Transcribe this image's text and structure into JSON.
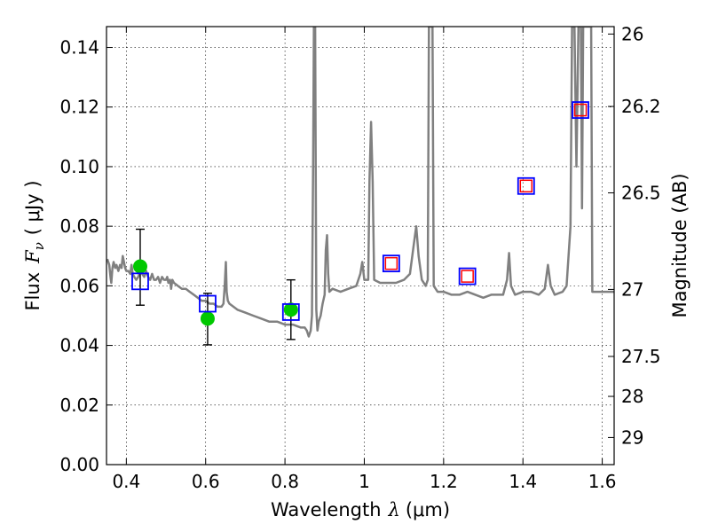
{
  "chart_data": {
    "type": "scatter",
    "xlabel_text": "Wavelength",
    "xlabel_symbol": "λ",
    "xlabel_unit": "(μm)",
    "ylabel_text": "Flux",
    "ylabel_symbol": "F",
    "ylabel_sub": "ν",
    "ylabel_unit": "( μJy )",
    "y2label": "Magnitude (AB)",
    "xlim": [
      0.35,
      1.63
    ],
    "ylim": [
      0.0,
      0.147
    ],
    "xticks": [
      0.4,
      0.6,
      0.8,
      1.0,
      1.2,
      1.4,
      1.6
    ],
    "xtick_labels": [
      "0.4",
      "0.6",
      "0.8",
      "1",
      "1.2",
      "1.4",
      "1.6"
    ],
    "yticks": [
      0.0,
      0.02,
      0.04,
      0.06,
      0.08,
      0.1,
      0.12,
      0.14
    ],
    "ytick_labels": [
      "0.00",
      "0.02",
      "0.04",
      "0.06",
      "0.08",
      "0.10",
      "0.12",
      "0.14"
    ],
    "y2ticks": [
      {
        "label": "26",
        "flux": 0.1445
      },
      {
        "label": "26.2",
        "flux": 0.1202
      },
      {
        "label": "26.5",
        "flux": 0.0912
      },
      {
        "label": "27",
        "flux": 0.0588
      },
      {
        "label": "27.5",
        "flux": 0.0363
      },
      {
        "label": "28",
        "flux": 0.0229
      },
      {
        "label": "29",
        "flux": 0.0091
      }
    ],
    "grid": true,
    "colors": {
      "spectrum": "#808080",
      "observed": "#00c800",
      "model_box": "#0000ff",
      "model_inner": "#ff0000",
      "errorbar": "#000000"
    },
    "series": [
      {
        "name": "model spectrum",
        "type": "line",
        "points": [
          [
            0.352,
            0.069
          ],
          [
            0.357,
            0.067
          ],
          [
            0.36,
            0.063
          ],
          [
            0.362,
            0.061
          ],
          [
            0.365,
            0.066
          ],
          [
            0.368,
            0.068
          ],
          [
            0.372,
            0.066
          ],
          [
            0.375,
            0.067
          ],
          [
            0.38,
            0.065
          ],
          [
            0.384,
            0.067
          ],
          [
            0.388,
            0.066
          ],
          [
            0.391,
            0.07
          ],
          [
            0.394,
            0.068
          ],
          [
            0.397,
            0.066
          ],
          [
            0.4,
            0.065
          ],
          [
            0.405,
            0.065
          ],
          [
            0.41,
            0.064
          ],
          [
            0.413,
            0.067
          ],
          [
            0.416,
            0.064
          ],
          [
            0.42,
            0.063
          ],
          [
            0.425,
            0.062
          ],
          [
            0.43,
            0.063
          ],
          [
            0.435,
            0.065
          ],
          [
            0.44,
            0.064
          ],
          [
            0.445,
            0.063
          ],
          [
            0.45,
            0.065
          ],
          [
            0.455,
            0.063
          ],
          [
            0.46,
            0.062
          ],
          [
            0.465,
            0.064
          ],
          [
            0.47,
            0.062
          ],
          [
            0.475,
            0.062
          ],
          [
            0.48,
            0.063
          ],
          [
            0.485,
            0.061
          ],
          [
            0.49,
            0.063
          ],
          [
            0.495,
            0.062
          ],
          [
            0.5,
            0.062
          ],
          [
            0.503,
            0.063
          ],
          [
            0.506,
            0.061
          ],
          [
            0.51,
            0.062
          ],
          [
            0.513,
            0.059
          ],
          [
            0.516,
            0.062
          ],
          [
            0.52,
            0.061
          ],
          [
            0.53,
            0.06
          ],
          [
            0.54,
            0.059
          ],
          [
            0.55,
            0.059
          ],
          [
            0.56,
            0.058
          ],
          [
            0.57,
            0.057
          ],
          [
            0.58,
            0.056
          ],
          [
            0.59,
            0.055
          ],
          [
            0.6,
            0.055
          ],
          [
            0.61,
            0.054
          ],
          [
            0.62,
            0.054
          ],
          [
            0.63,
            0.053
          ],
          [
            0.64,
            0.053
          ],
          [
            0.645,
            0.054
          ],
          [
            0.648,
            0.06
          ],
          [
            0.651,
            0.068
          ],
          [
            0.653,
            0.058
          ],
          [
            0.656,
            0.055
          ],
          [
            0.66,
            0.054
          ],
          [
            0.67,
            0.053
          ],
          [
            0.68,
            0.052
          ],
          [
            0.7,
            0.051
          ],
          [
            0.72,
            0.05
          ],
          [
            0.74,
            0.049
          ],
          [
            0.76,
            0.048
          ],
          [
            0.78,
            0.048
          ],
          [
            0.8,
            0.047
          ],
          [
            0.82,
            0.047
          ],
          [
            0.84,
            0.046
          ],
          [
            0.85,
            0.046
          ],
          [
            0.855,
            0.045
          ],
          [
            0.86,
            0.043
          ],
          [
            0.865,
            0.045
          ],
          [
            0.868,
            0.05
          ],
          [
            0.871,
            0.1
          ],
          [
            0.873,
            0.147
          ],
          [
            0.876,
            0.147
          ],
          [
            0.879,
            0.052
          ],
          [
            0.882,
            0.045
          ],
          [
            0.885,
            0.048
          ],
          [
            0.89,
            0.05
          ],
          [
            0.895,
            0.054
          ],
          [
            0.9,
            0.057
          ],
          [
            0.903,
            0.072
          ],
          [
            0.906,
            0.077
          ],
          [
            0.909,
            0.064
          ],
          [
            0.912,
            0.058
          ],
          [
            0.92,
            0.059
          ],
          [
            0.94,
            0.058
          ],
          [
            0.96,
            0.059
          ],
          [
            0.98,
            0.06
          ],
          [
            0.99,
            0.064
          ],
          [
            0.995,
            0.068
          ],
          [
            1.0,
            0.062
          ],
          [
            1.01,
            0.062
          ],
          [
            1.013,
            0.095
          ],
          [
            1.017,
            0.115
          ],
          [
            1.021,
            0.095
          ],
          [
            1.025,
            0.062
          ],
          [
            1.04,
            0.061
          ],
          [
            1.06,
            0.061
          ],
          [
            1.08,
            0.061
          ],
          [
            1.1,
            0.062
          ],
          [
            1.115,
            0.064
          ],
          [
            1.125,
            0.074
          ],
          [
            1.131,
            0.08
          ],
          [
            1.137,
            0.07
          ],
          [
            1.145,
            0.062
          ],
          [
            1.155,
            0.06
          ],
          [
            1.16,
            0.062
          ],
          [
            1.163,
            0.147
          ],
          [
            1.172,
            0.147
          ],
          [
            1.175,
            0.06
          ],
          [
            1.185,
            0.058
          ],
          [
            1.2,
            0.058
          ],
          [
            1.22,
            0.057
          ],
          [
            1.24,
            0.057
          ],
          [
            1.26,
            0.058
          ],
          [
            1.28,
            0.057
          ],
          [
            1.3,
            0.056
          ],
          [
            1.32,
            0.057
          ],
          [
            1.34,
            0.057
          ],
          [
            1.35,
            0.057
          ],
          [
            1.36,
            0.062
          ],
          [
            1.365,
            0.071
          ],
          [
            1.37,
            0.06
          ],
          [
            1.38,
            0.057
          ],
          [
            1.4,
            0.058
          ],
          [
            1.42,
            0.058
          ],
          [
            1.44,
            0.057
          ],
          [
            1.455,
            0.059
          ],
          [
            1.463,
            0.067
          ],
          [
            1.47,
            0.06
          ],
          [
            1.48,
            0.057
          ],
          [
            1.5,
            0.058
          ],
          [
            1.51,
            0.06
          ],
          [
            1.52,
            0.08
          ],
          [
            1.524,
            0.147
          ],
          [
            1.53,
            0.147
          ],
          [
            1.535,
            0.1
          ],
          [
            1.54,
            0.147
          ],
          [
            1.546,
            0.147
          ],
          [
            1.549,
            0.086
          ],
          [
            1.552,
            0.147
          ],
          [
            1.572,
            0.147
          ],
          [
            1.575,
            0.058
          ],
          [
            1.59,
            0.058
          ],
          [
            1.63,
            0.058
          ]
        ]
      },
      {
        "name": "observed",
        "type": "scatter_errorbar",
        "x": [
          0.435,
          0.605,
          0.815
        ],
        "y": [
          0.0665,
          0.049,
          0.052
        ],
        "yerr_low": [
          0.0535,
          0.0402,
          0.042
        ],
        "yerr_high": [
          0.079,
          0.0575,
          0.062
        ]
      },
      {
        "name": "model bandpass",
        "type": "scatter_square",
        "x": [
          0.435,
          0.605,
          0.815,
          1.068,
          1.26,
          1.408,
          1.545
        ],
        "y": [
          0.0615,
          0.054,
          0.0512,
          0.0675,
          0.0632,
          0.0935,
          0.119
        ],
        "inner_red": [
          false,
          false,
          false,
          true,
          true,
          true,
          true
        ]
      }
    ]
  }
}
